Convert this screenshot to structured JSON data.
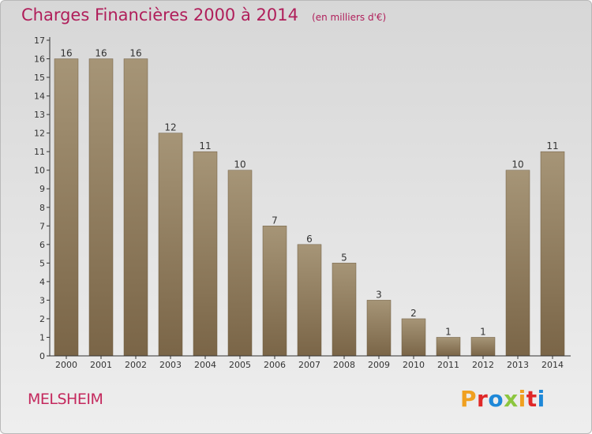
{
  "title": "Charges Financières 2000 à 2014",
  "subtitle": "(en milliers d'€)",
  "commune": "MELSHEIM",
  "logo": {
    "letters": [
      "P",
      "r",
      "o",
      "x",
      "i",
      "t",
      "i"
    ],
    "colors": [
      "#f0a020",
      "#e02828",
      "#1e88d8",
      "#8cc63f",
      "#f0a020",
      "#e02828",
      "#1e88d8"
    ]
  },
  "colors": {
    "title": "#b01e5a",
    "bar_top": "#a69577",
    "bar_bottom": "#7a6547",
    "axis": "#333333"
  },
  "chart_data": {
    "type": "bar",
    "categories": [
      "2000",
      "2001",
      "2002",
      "2003",
      "2004",
      "2005",
      "2006",
      "2007",
      "2008",
      "2009",
      "2010",
      "2011",
      "2012",
      "2013",
      "2014"
    ],
    "values": [
      16,
      16,
      16,
      12,
      11,
      10,
      7,
      6,
      5,
      3,
      2,
      1,
      1,
      10,
      11
    ],
    "data_labels": [
      "16",
      "16",
      "16",
      "12",
      "11",
      "10",
      "7",
      "6",
      "5",
      "3",
      "2",
      "1",
      "1",
      "10",
      "11"
    ],
    "y_ticks": [
      "0",
      "1",
      "2",
      "3",
      "4",
      "5",
      "6",
      "7",
      "8",
      "9",
      "10",
      "11",
      "12",
      "13",
      "14",
      "15",
      "16",
      "17"
    ],
    "ylim": [
      0,
      17
    ],
    "grid": false,
    "legend": "none"
  }
}
